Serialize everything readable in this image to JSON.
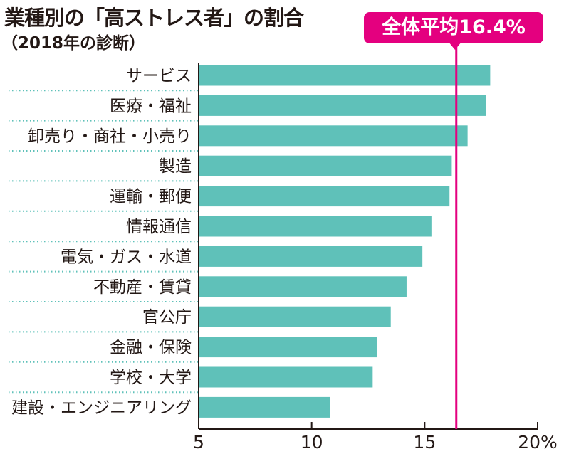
{
  "title": "業種別の「高ストレス者」の割合",
  "subtitle": "（2018年の診断）",
  "colors": {
    "bar": "#5fc1b9",
    "average_line": "#e4007f",
    "divider": "#5fc1b9",
    "axis": "#231815"
  },
  "chart_data": {
    "type": "bar",
    "orientation": "horizontal",
    "title": "業種別の「高ストレス者」の割合",
    "subtitle": "（2018年の診断）",
    "unit": "%",
    "categories": [
      "サービス",
      "医療・福祉",
      "卸売り・商社・小売り",
      "製造",
      "運輸・郵便",
      "情報通信",
      "電気・ガス・水道",
      "不動産・賃貸",
      "官公庁",
      "金融・保険",
      "学校・大学",
      "建設・エンジニアリング"
    ],
    "values": [
      17.9,
      17.7,
      16.9,
      16.2,
      16.1,
      15.3,
      14.9,
      14.2,
      13.5,
      12.9,
      12.7,
      10.8
    ],
    "xlim": [
      5,
      20
    ],
    "ticks": [
      5,
      10,
      15,
      20
    ],
    "tick_labels": [
      "5",
      "10",
      "15",
      "20%"
    ],
    "reference_line": {
      "value": 16.4,
      "label": "全体平均16.4%"
    },
    "grid": false
  }
}
